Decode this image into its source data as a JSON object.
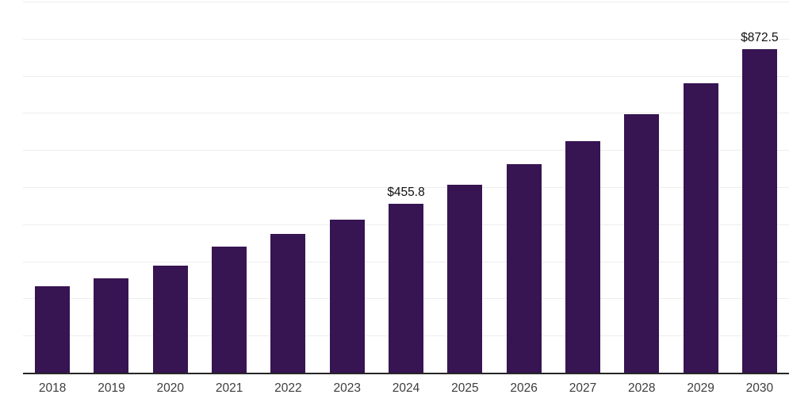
{
  "chart_data": {
    "type": "bar",
    "title": "",
    "xlabel": "",
    "ylabel": "",
    "categories": [
      "2018",
      "2019",
      "2020",
      "2021",
      "2022",
      "2023",
      "2024",
      "2025",
      "2026",
      "2027",
      "2028",
      "2029",
      "2030"
    ],
    "values": [
      233,
      255,
      289,
      339,
      375,
      412,
      455.8,
      506,
      562,
      625,
      696,
      781,
      872.5
    ],
    "bar_labels": [
      "",
      "",
      "",
      "",
      "",
      "",
      "$455.8",
      "",
      "",
      "",
      "",
      "",
      "$872.5"
    ],
    "ylim": [
      0,
      1000
    ],
    "y_gridline_step": 100,
    "grid": true,
    "legend": false,
    "y_axis_labels_visible": false,
    "bar_color": "#371452",
    "gridline_color": "#ededed",
    "axis_line_color": "#262626",
    "tick_label_color": "#3d3d3d",
    "data_label_color": "#0f0f0f",
    "background_color": "#ffffff"
  }
}
